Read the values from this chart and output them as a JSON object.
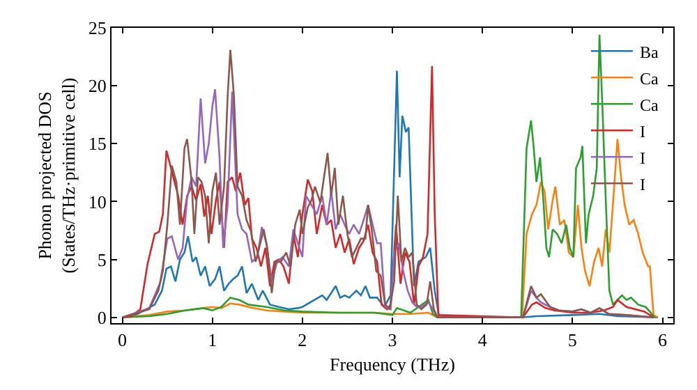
{
  "chart_data": {
    "type": "line",
    "xlabel": "Frequency (THz)",
    "ylabel": "Phonon projected DOS\n(States/THz·primitive cell)",
    "xlim": [
      -0.12,
      6.12
    ],
    "ylim": [
      -0.5,
      25
    ],
    "xticks": [
      0,
      1,
      2,
      3,
      4,
      5,
      6
    ],
    "yticks": [
      0,
      5,
      10,
      15,
      20,
      25
    ],
    "legend": "top right",
    "marker": "none",
    "line_style": "solid",
    "series": [
      {
        "name": "Ba",
        "color": "#1f77b4",
        "x": [
          0,
          0.15,
          0.36,
          0.44,
          0.49,
          0.54,
          0.59,
          0.64,
          0.69,
          0.73,
          0.78,
          0.82,
          0.87,
          0.92,
          0.97,
          1.03,
          1.08,
          1.13,
          1.18,
          1.23,
          1.28,
          1.33,
          1.38,
          1.44,
          1.51,
          1.56,
          1.64,
          1.74,
          1.85,
          1.95,
          2.0,
          2.22,
          2.27,
          2.37,
          2.42,
          2.47,
          2.52,
          2.6,
          2.65,
          2.7,
          2.75,
          2.83,
          2.91,
          2.98,
          3.05,
          3.08,
          3.11,
          3.15,
          3.18,
          3.24,
          3.29,
          3.37,
          3.42,
          3.47,
          3.52,
          4.44,
          4.6,
          5.0,
          5.3,
          5.5,
          5.95
        ],
        "values": [
          0,
          0.2,
          1.1,
          2.3,
          4.2,
          4.4,
          3.1,
          5.0,
          5.6,
          7.0,
          4.8,
          5.2,
          3.6,
          4.4,
          2.7,
          3.3,
          4.4,
          2.3,
          2.9,
          3.3,
          3.6,
          4.4,
          2.1,
          2.9,
          1.5,
          2.3,
          1.1,
          0.9,
          0.7,
          0.8,
          0.9,
          1.9,
          1.5,
          2.7,
          1.7,
          1.9,
          1.7,
          2.3,
          1.9,
          2.7,
          1.7,
          1.7,
          0.9,
          1.9,
          21.3,
          12.1,
          17.4,
          16.0,
          16.4,
          2.7,
          4.8,
          5.2,
          6.0,
          2.3,
          0,
          0,
          0.1,
          0.2,
          0.3,
          0.1,
          0
        ]
      },
      {
        "name": "Ca",
        "color": "#ff7f0e",
        "x": [
          0,
          0.3,
          0.5,
          0.7,
          0.9,
          1.0,
          1.1,
          1.2,
          1.3,
          1.4,
          1.6,
          1.8,
          2.0,
          2.4,
          2.8,
          3.0,
          3.2,
          3.4,
          3.5,
          4.44,
          4.49,
          4.55,
          4.6,
          4.65,
          4.69,
          4.73,
          4.78,
          4.81,
          4.86,
          4.91,
          4.96,
          5.01,
          5.06,
          5.1,
          5.14,
          5.19,
          5.24,
          5.29,
          5.33,
          5.37,
          5.41,
          5.46,
          5.5,
          5.54,
          5.58,
          5.63,
          5.68,
          5.73,
          5.78,
          5.84,
          5.86,
          5.9,
          5.95
        ],
        "values": [
          0,
          0.2,
          0.5,
          0.6,
          0.8,
          0.9,
          0.8,
          1.2,
          1.1,
          0.9,
          0.6,
          0.5,
          0.4,
          0.4,
          0.4,
          0.3,
          0.3,
          0.4,
          0,
          0,
          7.2,
          8.9,
          9.7,
          11.7,
          10.9,
          7.6,
          10.1,
          11.3,
          8.0,
          8.4,
          5.6,
          5.2,
          9.7,
          6.0,
          4.0,
          2.7,
          4.8,
          6.0,
          4.4,
          7.6,
          5.6,
          10.9,
          15.4,
          12.1,
          9.7,
          8.0,
          8.4,
          7.2,
          5.6,
          4.4,
          4.4,
          0.2,
          0
        ]
      },
      {
        "name": "Ca",
        "color": "#2ca02c",
        "x": [
          0,
          0.3,
          0.5,
          0.7,
          0.9,
          1.0,
          1.1,
          1.2,
          1.3,
          1.4,
          1.6,
          1.8,
          2.0,
          2.4,
          2.8,
          3.0,
          3.05,
          3.2,
          3.4,
          3.45,
          3.5,
          4.43,
          4.49,
          4.54,
          4.57,
          4.6,
          4.64,
          4.68,
          4.71,
          4.74,
          4.78,
          4.83,
          4.88,
          4.93,
          4.97,
          5.01,
          5.04,
          5.09,
          5.11,
          5.15,
          5.18,
          5.23,
          5.27,
          5.3,
          5.33,
          5.37,
          5.41,
          5.45,
          5.5,
          5.55,
          5.6,
          5.65,
          5.73,
          5.81,
          5.86,
          5.91
        ],
        "values": [
          0,
          0.1,
          0.3,
          0.6,
          0.8,
          0.6,
          0.9,
          1.7,
          1.5,
          1.1,
          0.9,
          0.6,
          0.5,
          0.4,
          0.4,
          0.2,
          0.8,
          0.4,
          1.5,
          0.3,
          0,
          0,
          14.6,
          17.0,
          14.6,
          11.7,
          13.8,
          9.7,
          6.0,
          5.2,
          7.6,
          7.2,
          6.4,
          8.0,
          6.0,
          5.2,
          12.9,
          13.8,
          14.8,
          6.4,
          8.9,
          10.5,
          12.9,
          24.4,
          18.7,
          10.1,
          2.3,
          1.1,
          1.5,
          1.9,
          1.5,
          1.7,
          1.1,
          0.9,
          0.5,
          0
        ]
      },
      {
        "name": "I",
        "color": "#d62728",
        "x": [
          0,
          0.1,
          0.2,
          0.28,
          0.36,
          0.41,
          0.45,
          0.49,
          0.54,
          0.58,
          0.62,
          0.67,
          0.72,
          0.77,
          0.82,
          0.87,
          0.91,
          0.95,
          0.99,
          1.04,
          1.08,
          1.13,
          1.17,
          1.22,
          1.26,
          1.31,
          1.36,
          1.4,
          1.44,
          1.49,
          1.54,
          1.59,
          1.64,
          1.69,
          1.74,
          1.79,
          1.85,
          1.9,
          1.95,
          2.0,
          2.06,
          2.11,
          2.16,
          2.22,
          2.27,
          2.32,
          2.37,
          2.42,
          2.47,
          2.52,
          2.57,
          2.63,
          2.68,
          2.73,
          2.78,
          2.83,
          2.88,
          2.94,
          2.98,
          3.04,
          3.09,
          3.14,
          3.19,
          3.24,
          3.29,
          3.34,
          3.39,
          3.44,
          3.47,
          3.51,
          4.45,
          4.55,
          4.6,
          4.7,
          4.8,
          5.0,
          5.2,
          5.35,
          5.45,
          5.5,
          5.6,
          5.8,
          5.9
        ],
        "values": [
          0,
          0.1,
          0.7,
          4.6,
          7.2,
          7.4,
          8.9,
          14.4,
          12.9,
          11.7,
          10.5,
          8.0,
          10.5,
          11.3,
          10.1,
          11.5,
          8.7,
          10.5,
          7.2,
          10.1,
          11.7,
          6.0,
          11.7,
          12.1,
          10.9,
          12.5,
          9.7,
          10.3,
          6.8,
          6.0,
          4.4,
          6.0,
          2.7,
          4.8,
          5.0,
          4.4,
          2.9,
          7.2,
          5.2,
          8.9,
          11.9,
          10.9,
          7.2,
          9.7,
          8.0,
          8.4,
          6.0,
          7.2,
          5.6,
          6.8,
          4.6,
          6.0,
          6.6,
          8.0,
          5.6,
          4.8,
          1.1,
          0.7,
          1.1,
          8.0,
          2.9,
          5.6,
          4.8,
          1.1,
          4.4,
          5.2,
          7.2,
          21.7,
          8.9,
          0.2,
          0,
          1.1,
          1.3,
          0.8,
          0.6,
          0.4,
          0.4,
          0.6,
          0.9,
          1.5,
          0.9,
          0.5,
          0
        ]
      },
      {
        "name": "I",
        "color": "#9467bd",
        "x": [
          0,
          0.3,
          0.42,
          0.5,
          0.55,
          0.62,
          0.67,
          0.72,
          0.77,
          0.82,
          0.87,
          0.92,
          0.96,
          1.0,
          1.03,
          1.08,
          1.12,
          1.17,
          1.22,
          1.28,
          1.33,
          1.38,
          1.44,
          1.5,
          1.55,
          1.6,
          1.66,
          1.72,
          1.78,
          1.85,
          1.9,
          1.95,
          2.0,
          2.04,
          2.1,
          2.16,
          2.22,
          2.27,
          2.32,
          2.37,
          2.42,
          2.47,
          2.52,
          2.57,
          2.63,
          2.68,
          2.73,
          2.78,
          2.83,
          2.87,
          2.92,
          2.98,
          3.02,
          3.07,
          3.12,
          3.17,
          3.22,
          3.27,
          3.32,
          3.4,
          3.45,
          3.5,
          4.45,
          4.54,
          4.6,
          4.65,
          4.75,
          4.85,
          5.0,
          5.1,
          5.2,
          5.3,
          5.4,
          5.6,
          5.9
        ],
        "values": [
          0,
          0.8,
          3.0,
          6.8,
          7.0,
          5.0,
          6.0,
          10.3,
          12.1,
          11.3,
          18.9,
          13.3,
          15.0,
          18.2,
          19.7,
          13.8,
          6.0,
          9.7,
          19.5,
          8.9,
          7.6,
          7.2,
          4.8,
          5.2,
          7.8,
          6.4,
          3.1,
          4.8,
          5.2,
          4.4,
          7.6,
          6.4,
          5.2,
          10.5,
          9.7,
          8.9,
          10.5,
          8.0,
          10.9,
          7.6,
          8.9,
          8.0,
          7.2,
          8.0,
          7.2,
          8.4,
          9.7,
          8.0,
          6.4,
          6.4,
          0.9,
          0.7,
          5.6,
          6.4,
          4.0,
          2.3,
          1.3,
          0.9,
          0.9,
          1.3,
          0.7,
          0,
          0,
          2.3,
          1.7,
          1.3,
          0.9,
          0.6,
          0.5,
          0.7,
          0.4,
          0.8,
          0.3,
          0.2,
          0
        ]
      },
      {
        "name": "I",
        "color": "#8c564b",
        "x": [
          0,
          0.3,
          0.4,
          0.45,
          0.5,
          0.55,
          0.6,
          0.64,
          0.69,
          0.72,
          0.77,
          0.8,
          0.84,
          0.88,
          0.92,
          0.96,
          1.0,
          1.04,
          1.08,
          1.13,
          1.17,
          1.2,
          1.24,
          1.28,
          1.33,
          1.38,
          1.43,
          1.48,
          1.52,
          1.57,
          1.61,
          1.66,
          1.7,
          1.76,
          1.82,
          1.87,
          1.92,
          1.97,
          2.0,
          2.06,
          2.1,
          2.14,
          2.2,
          2.24,
          2.28,
          2.32,
          2.36,
          2.4,
          2.45,
          2.5,
          2.55,
          2.6,
          2.65,
          2.7,
          2.73,
          2.77,
          2.82,
          2.87,
          2.92,
          2.97,
          3.02,
          3.06,
          3.1,
          3.14,
          3.18,
          3.22,
          3.27,
          3.32,
          3.38,
          3.42,
          3.46,
          3.5,
          4.45,
          4.54,
          4.6,
          4.65,
          4.75,
          4.85,
          5.0,
          5.1,
          5.2,
          5.3,
          5.4,
          5.6,
          5.9
        ],
        "values": [
          0,
          0.7,
          2.3,
          4.0,
          8.0,
          13.1,
          11.7,
          8.0,
          14.6,
          15.4,
          11.7,
          7.2,
          12.1,
          11.7,
          10.5,
          6.4,
          10.9,
          12.5,
          8.0,
          11.3,
          19.1,
          23.1,
          19.1,
          11.3,
          10.5,
          8.4,
          7.4,
          4.8,
          6.0,
          7.6,
          6.0,
          2.1,
          4.8,
          4.8,
          5.6,
          4.4,
          8.0,
          9.3,
          7.2,
          9.5,
          10.1,
          11.3,
          9.9,
          12.1,
          14.2,
          10.5,
          12.9,
          8.0,
          10.5,
          7.2,
          5.2,
          6.0,
          6.8,
          6.8,
          9.7,
          7.6,
          4.0,
          3.6,
          1.1,
          0.7,
          3.1,
          10.5,
          4.8,
          6.0,
          5.2,
          5.6,
          1.1,
          0.7,
          1.1,
          3.1,
          0.7,
          0,
          0,
          2.7,
          1.7,
          2.0,
          0.9,
          0.6,
          0.5,
          0.7,
          0.4,
          0.8,
          0.3,
          0.2,
          0
        ]
      }
    ]
  }
}
